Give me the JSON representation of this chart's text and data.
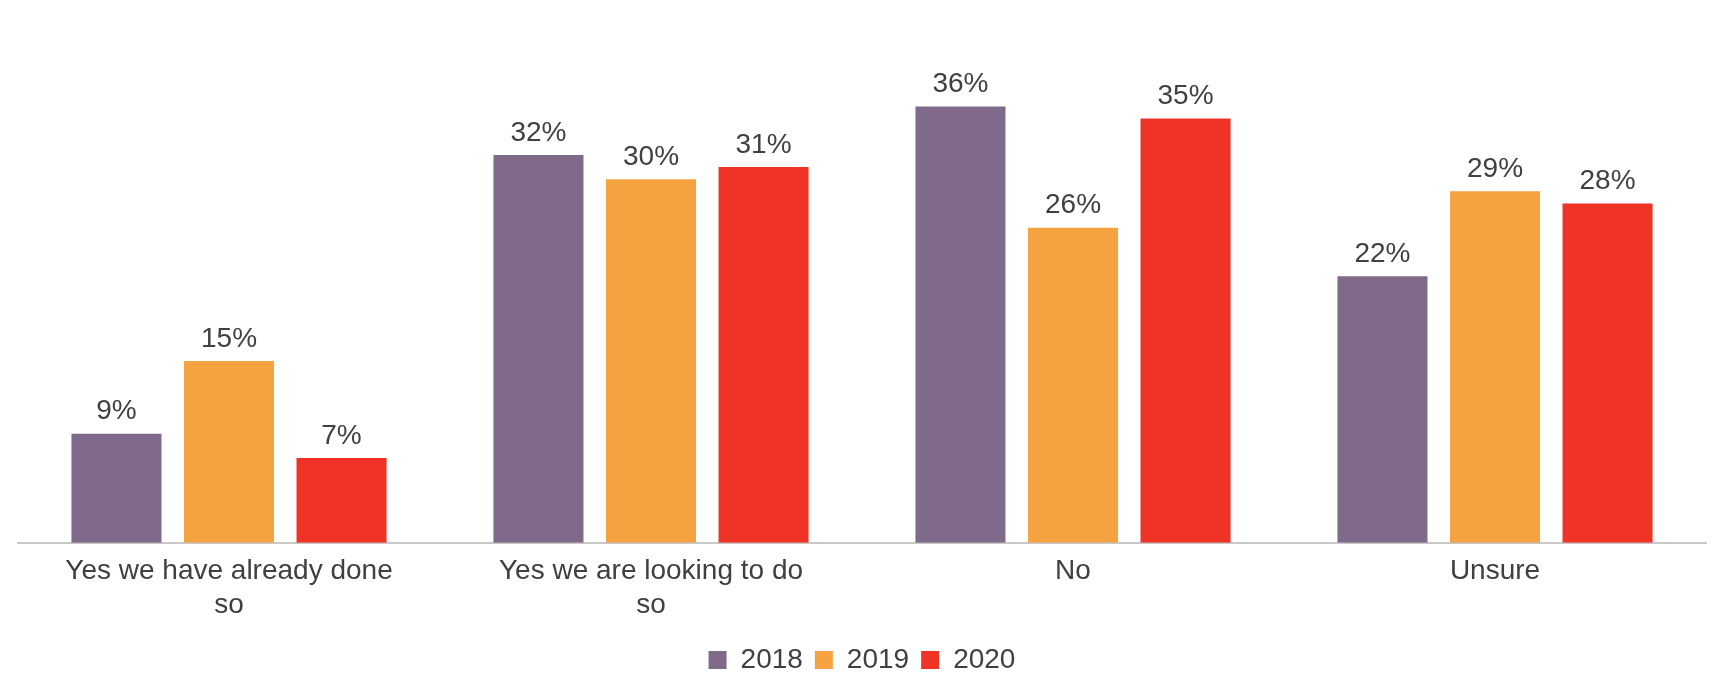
{
  "chart_data": {
    "type": "bar",
    "categories": [
      "Yes we have already done so",
      "Yes we are looking to do so",
      "No",
      "Unsure"
    ],
    "series": [
      {
        "name": "2018",
        "color": "#7f6a8a",
        "values": [
          9,
          32,
          36,
          22
        ],
        "value_labels": [
          "9%",
          "32%",
          "36%",
          "22%"
        ]
      },
      {
        "name": "2019",
        "color": "#f5a340",
        "values": [
          15,
          30,
          26,
          29
        ],
        "value_labels": [
          "15%",
          "30%",
          "26%",
          "29%"
        ]
      },
      {
        "name": "2020",
        "color": "#ef3326",
        "values": [
          7,
          31,
          35,
          28
        ],
        "value_labels": [
          "7%",
          "31%",
          "35%",
          "28%"
        ]
      }
    ],
    "legend": "bottom",
    "grid": false,
    "tick_labels": "x"
  }
}
